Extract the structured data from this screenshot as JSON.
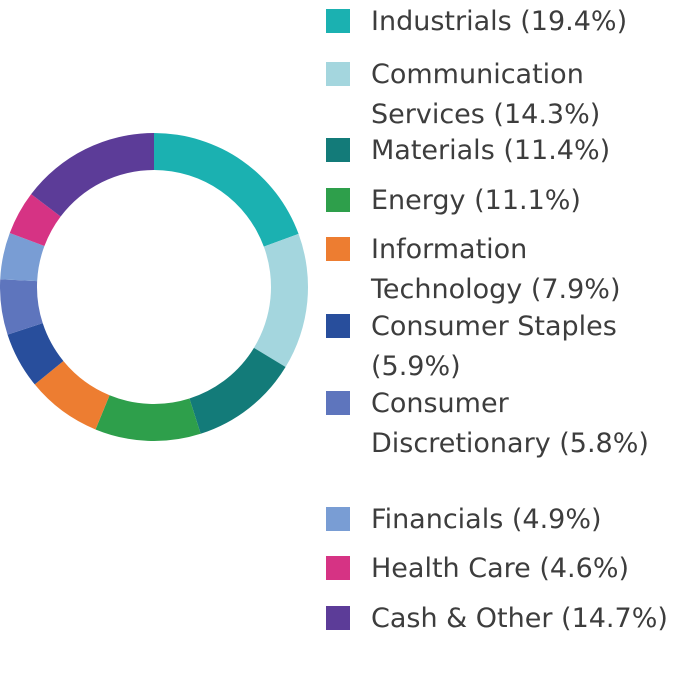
{
  "chart_data": {
    "type": "pie",
    "style": "donut",
    "title": "",
    "legend_position": "right",
    "slices": [
      {
        "label": "Industrials",
        "display": "Industrials (19.4%)",
        "value": 19.4,
        "color": "#1bb1b1"
      },
      {
        "label": "Communication Services",
        "display": "Communication Services (14.3%)",
        "value": 14.3,
        "color": "#a4d6de"
      },
      {
        "label": "Materials",
        "display": "Materials (11.4%)",
        "value": 11.4,
        "color": "#137b79"
      },
      {
        "label": "Energy",
        "display": "Energy (11.1%)",
        "value": 11.1,
        "color": "#2e9f4b"
      },
      {
        "label": "Information Technology",
        "display": "Information Technology (7.9%)",
        "value": 7.9,
        "color": "#ed7d31"
      },
      {
        "label": "Consumer Staples",
        "display": "Consumer Staples (5.9%)",
        "value": 5.9,
        "color": "#284e9c"
      },
      {
        "label": "Consumer Discretionary",
        "display": "Consumer Discretionary (5.8%)",
        "value": 5.8,
        "color": "#5e75bd"
      },
      {
        "label": "Financials",
        "display": "Financials (4.9%)",
        "value": 4.9,
        "color": "#799dd4"
      },
      {
        "label": "Health Care",
        "display": "Health Care (4.6%)",
        "value": 4.6,
        "color": "#d63384"
      },
      {
        "label": "Cash & Other",
        "display": "Cash & Other (14.7%)",
        "value": 14.7,
        "color": "#5c3c98"
      }
    ]
  }
}
